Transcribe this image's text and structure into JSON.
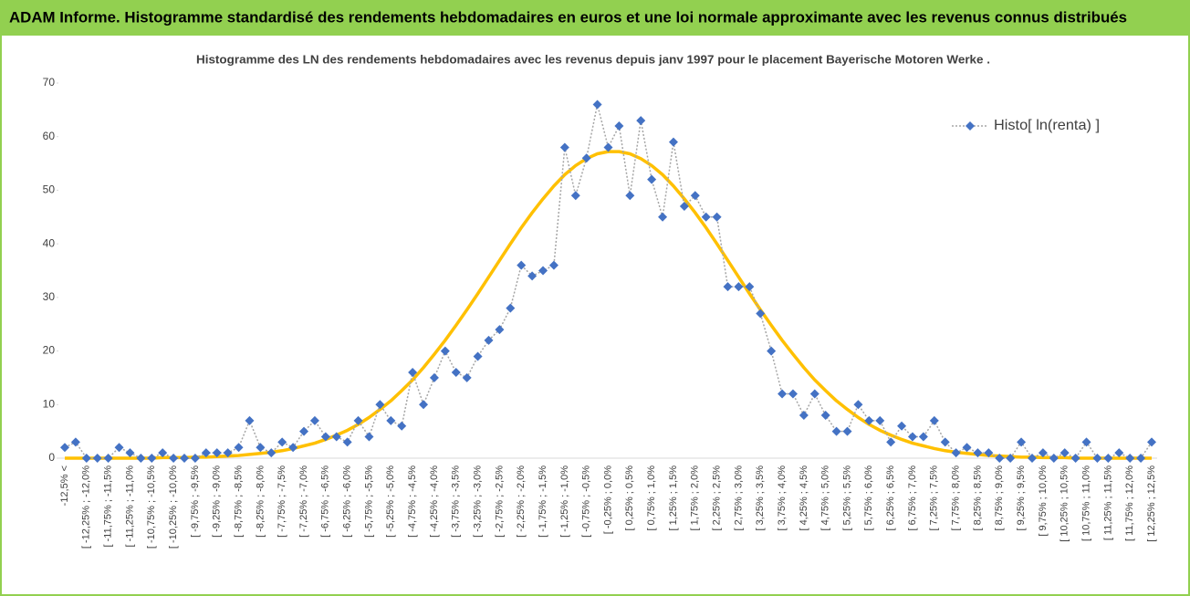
{
  "chart_data": {
    "type": "line",
    "title": "ADAM Informe. Histogramme standardisé des rendements hebdomadaires en euros et une loi normale approximante avec les revenus connus distribués",
    "subtitle": "Histogramme des LN des rendements hebdomadaires avec les revenus depuis janv 1997 pour le placement Bayerische Motoren Werke .",
    "categories": [
      "-12,5% <",
      null,
      "[ -12,25% ; -12,0%",
      null,
      "[ -11,75% ; -11,5%",
      null,
      "[ -11,25% ; -11,0%",
      null,
      "[ -10,75% ; -10,5%",
      null,
      "[ -10,25% ; -10,0%",
      null,
      "[ -9,75% ; -9,5%",
      null,
      "[ -9,25% ; -9,0%",
      null,
      "[ -8,75% ; -8,5%",
      null,
      "[ -8,25% ; -8,0%",
      null,
      "[ -7,75% ; -7,5%",
      null,
      "[ -7,25% ; -7,0%",
      null,
      "[ -6,75% ; -6,5%",
      null,
      "[ -6,25% ; -6,0%",
      null,
      "[ -5,75% ; -5,5%",
      null,
      "[ -5,25% ; -5,0%",
      null,
      "[ -4,75% ; -4,5%",
      null,
      "[ -4,25% ; -4,0%",
      null,
      "[ -3,75% ; -3,5%",
      null,
      "[ -3,25% ; -3,0%",
      null,
      "[ -2,75% ; -2,5%",
      null,
      "[ -2,25% ; -2,0%",
      null,
      "[ -1,75% ; -1,5%",
      null,
      "[ -1,25% ; -1,0%",
      null,
      "[ -0,75% ; -0,5%",
      null,
      "[ -0,25% ; 0,0%",
      null,
      "[ 0,25% ; 0,5%",
      null,
      "[ 0,75% ; 1,0%",
      null,
      "[ 1,25% ; 1,5%",
      null,
      "[ 1,75% ; 2,0%",
      null,
      "[ 2,25% ; 2,5%",
      null,
      "[ 2,75% ; 3,0%",
      null,
      "[ 3,25% ; 3,5%",
      null,
      "[ 3,75% ; 4,0%",
      null,
      "[ 4,25% ; 4,5%",
      null,
      "[ 4,75% ; 5,0%",
      null,
      "[ 5,25% ; 5,5%",
      null,
      "[ 5,75% ; 6,0%",
      null,
      "[ 6,25% ; 6,5%",
      null,
      "[ 6,75% ; 7,0%",
      null,
      "[ 7,25% ; 7,5%",
      null,
      "[ 7,75% ; 8,0%",
      null,
      "[ 8,25% ; 8,5%",
      null,
      "[ 8,75% ; 9,0%",
      null,
      "[ 9,25% ; 9,5%",
      null,
      "[ 9,75% ; 10,0%",
      null,
      "[ 10,25% ; 10,5%",
      null,
      "[ 10,75% ; 11,0%",
      null,
      "[ 11,25% ; 11,5%",
      null,
      "[ 11,75% ; 12,0%",
      null,
      "[ 12,25% ; 12,5%"
    ],
    "series": [
      {
        "name": "Histo[ ln(renta) ]",
        "color": "#4472c4",
        "line_color": "#a5a5a5",
        "values": [
          2,
          3,
          0,
          0,
          0,
          2,
          1,
          0,
          0,
          1,
          0,
          0,
          0,
          1,
          1,
          1,
          2,
          7,
          2,
          1,
          3,
          2,
          5,
          7,
          4,
          4,
          3,
          7,
          4,
          10,
          7,
          6,
          16,
          10,
          15,
          20,
          16,
          15,
          19,
          22,
          24,
          28,
          36,
          34,
          35,
          36,
          58,
          49,
          56,
          66,
          58,
          62,
          49,
          63,
          52,
          45,
          59,
          47,
          49,
          45,
          45,
          32,
          32,
          32,
          27,
          20,
          12,
          12,
          8,
          12,
          8,
          5,
          5,
          10,
          7,
          7,
          3,
          6,
          4,
          4,
          7,
          3,
          1,
          2,
          1,
          1,
          0,
          0,
          3,
          0,
          1,
          0,
          1,
          0,
          3,
          0,
          0,
          1,
          0,
          0,
          3
        ]
      },
      {
        "color": "#ffc000",
        "values": [
          0,
          0,
          0,
          0,
          0,
          0,
          0,
          0,
          0,
          0.1,
          0.1,
          0.1,
          0.2,
          0.2,
          0.3,
          0.4,
          0.5,
          0.7,
          0.9,
          1.1,
          1.4,
          1.8,
          2.3,
          2.8,
          3.5,
          4.3,
          5.2,
          6.3,
          7.6,
          9.1,
          10.7,
          12.6,
          14.6,
          16.9,
          19.4,
          22.0,
          24.8,
          27.7,
          30.7,
          33.8,
          36.9,
          40.0,
          43.0,
          45.8,
          48.4,
          50.8,
          52.9,
          54.6,
          55.9,
          56.8,
          57.2,
          57.2,
          56.8,
          55.9,
          54.6,
          52.9,
          50.8,
          48.4,
          45.8,
          43.0,
          40.0,
          36.9,
          33.8,
          30.7,
          27.7,
          24.8,
          22.0,
          19.4,
          16.9,
          14.6,
          12.6,
          10.7,
          9.1,
          7.6,
          6.3,
          5.2,
          4.3,
          3.5,
          2.8,
          2.3,
          1.8,
          1.4,
          1.1,
          0.9,
          0.7,
          0.5,
          0.4,
          0.3,
          0.2,
          0.2,
          0.1,
          0.1,
          0.1,
          0,
          0,
          0,
          0,
          0,
          0,
          0,
          0
        ]
      }
    ],
    "ylim": [
      0,
      70
    ],
    "yticks": [
      0,
      10,
      20,
      30,
      40,
      50,
      60,
      70
    ],
    "legend": "top-right"
  }
}
